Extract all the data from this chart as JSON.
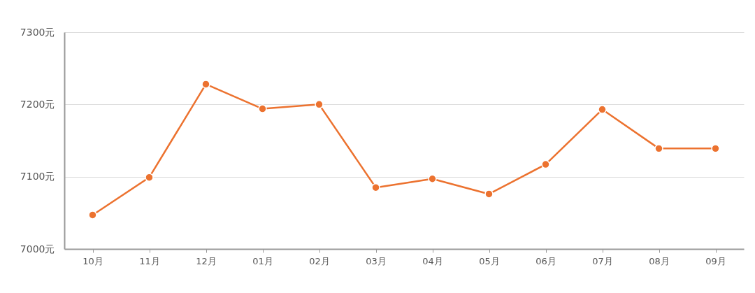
{
  "chart_data": {
    "type": "line",
    "categories": [
      "10月",
      "11月",
      "12月",
      "01月",
      "02月",
      "03月",
      "04月",
      "05月",
      "06月",
      "07月",
      "08月",
      "09月"
    ],
    "series": [
      {
        "color": "#ec722f",
        "values": [
          7047,
          7099,
          7228,
          7194,
          7200,
          7085,
          7097,
          7076,
          7117,
          7193,
          7139,
          7139
        ]
      }
    ],
    "ylim": [
      7000,
      7300
    ],
    "yticks": [
      {
        "value": 7000,
        "label": "7000元"
      },
      {
        "value": 7100,
        "label": "7100元"
      },
      {
        "value": 7200,
        "label": "7200元"
      },
      {
        "value": 7300,
        "label": "7300元"
      }
    ],
    "grid": "y",
    "marker": "circle",
    "line_style": "solid"
  }
}
